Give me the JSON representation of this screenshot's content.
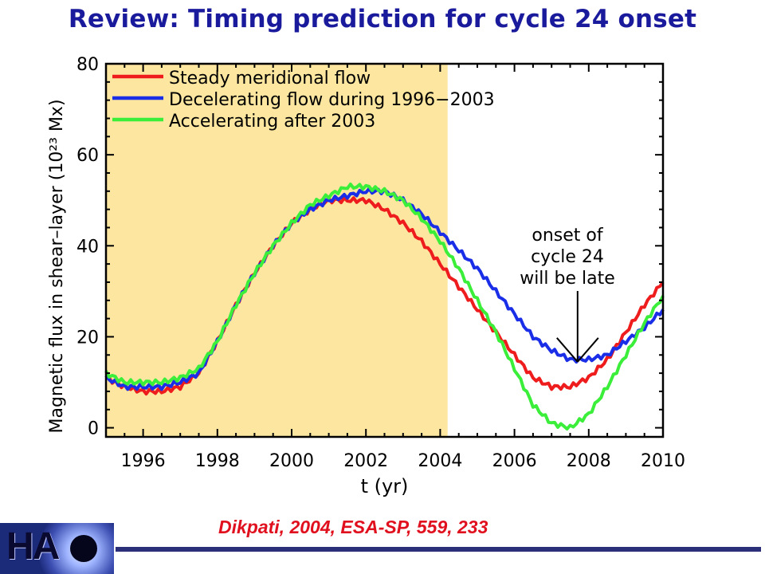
{
  "slide": {
    "title": "Review: Timing prediction for cycle 24 onset",
    "citation": "Dikpati, 2004, ESA-SP, 559, 233",
    "logo_text": "HA"
  },
  "colors": {
    "title": "#1a1a9c",
    "citation": "#e0101e",
    "shade": "#fde7a0",
    "red": "#ee1c1c",
    "blue": "#1a2ee8",
    "green": "#3aee3a"
  },
  "chart_data": {
    "type": "line",
    "xlabel": "t (yr)",
    "ylabel": "Magnetic flux in shear–layer (10²³ Mx)",
    "xlim": [
      1995,
      2010
    ],
    "ylim": [
      -2,
      80
    ],
    "xticks": [
      1996,
      1998,
      2000,
      2002,
      2004,
      2006,
      2008,
      2010
    ],
    "yticks": [
      0,
      20,
      40,
      60,
      80
    ],
    "shaded_region": [
      1995,
      2004.2
    ],
    "legend_placement": "top-left",
    "annotation": {
      "lines": [
        "onset of",
        "cycle 24",
        "will be late"
      ],
      "arrow_target": [
        2007.7,
        14.5
      ]
    },
    "series": [
      {
        "name": "Steady meridional flow",
        "color": "#ee1c1c",
        "x": [
          1995,
          1995.5,
          1996,
          1996.5,
          1997,
          1997.5,
          1998,
          1998.5,
          1999,
          1999.5,
          2000,
          2000.5,
          2001,
          2001.5,
          2002,
          2002.5,
          2003,
          2003.5,
          2004,
          2004.5,
          2005,
          2005.5,
          2006,
          2006.5,
          2007,
          2007.5,
          2008,
          2008.5,
          2009,
          2009.5,
          2010
        ],
        "y": [
          11,
          9,
          8,
          8,
          9,
          12,
          19,
          27,
          34,
          40,
          45,
          48,
          50,
          50,
          50,
          48,
          45,
          41,
          36,
          31,
          26,
          21,
          16,
          11,
          9,
          9,
          11,
          15,
          21,
          27,
          32
        ]
      },
      {
        "name": "Decelerating flow during 1996−2003",
        "color": "#1a2ee8",
        "x": [
          1995,
          1995.5,
          1996,
          1996.5,
          1997,
          1997.5,
          1998,
          1998.5,
          1999,
          1999.5,
          2000,
          2000.5,
          2001,
          2001.5,
          2002,
          2002.5,
          2003,
          2003.5,
          2004,
          2004.5,
          2005,
          2005.5,
          2006,
          2006.5,
          2007,
          2007.5,
          2008,
          2008.5,
          2009,
          2009.5,
          2010
        ],
        "y": [
          11,
          9,
          9,
          9,
          10,
          12,
          19,
          27,
          34,
          40,
          45,
          48,
          50,
          51,
          52,
          52,
          50,
          47,
          43,
          39,
          35,
          30,
          25,
          20,
          17,
          15,
          15,
          16,
          19,
          22,
          26
        ]
      },
      {
        "name": "Accelerating after 2003",
        "color": "#3aee3a",
        "x": [
          1995,
          1995.5,
          1996,
          1996.5,
          1997,
          1997.5,
          1998,
          1998.5,
          1999,
          1999.5,
          2000,
          2000.5,
          2001,
          2001.5,
          2002,
          2002.5,
          2003,
          2003.5,
          2004,
          2004.5,
          2005,
          2005.5,
          2006,
          2006.5,
          2007,
          2007.5,
          2008,
          2008.5,
          2009,
          2009.5,
          2010
        ],
        "y": [
          12,
          10,
          10,
          10,
          11,
          13,
          19,
          27,
          34,
          40,
          45,
          49,
          51,
          53,
          53,
          52,
          50,
          46,
          41,
          35,
          28,
          21,
          13,
          5,
          1,
          0,
          3,
          9,
          16,
          23,
          29
        ]
      }
    ]
  }
}
